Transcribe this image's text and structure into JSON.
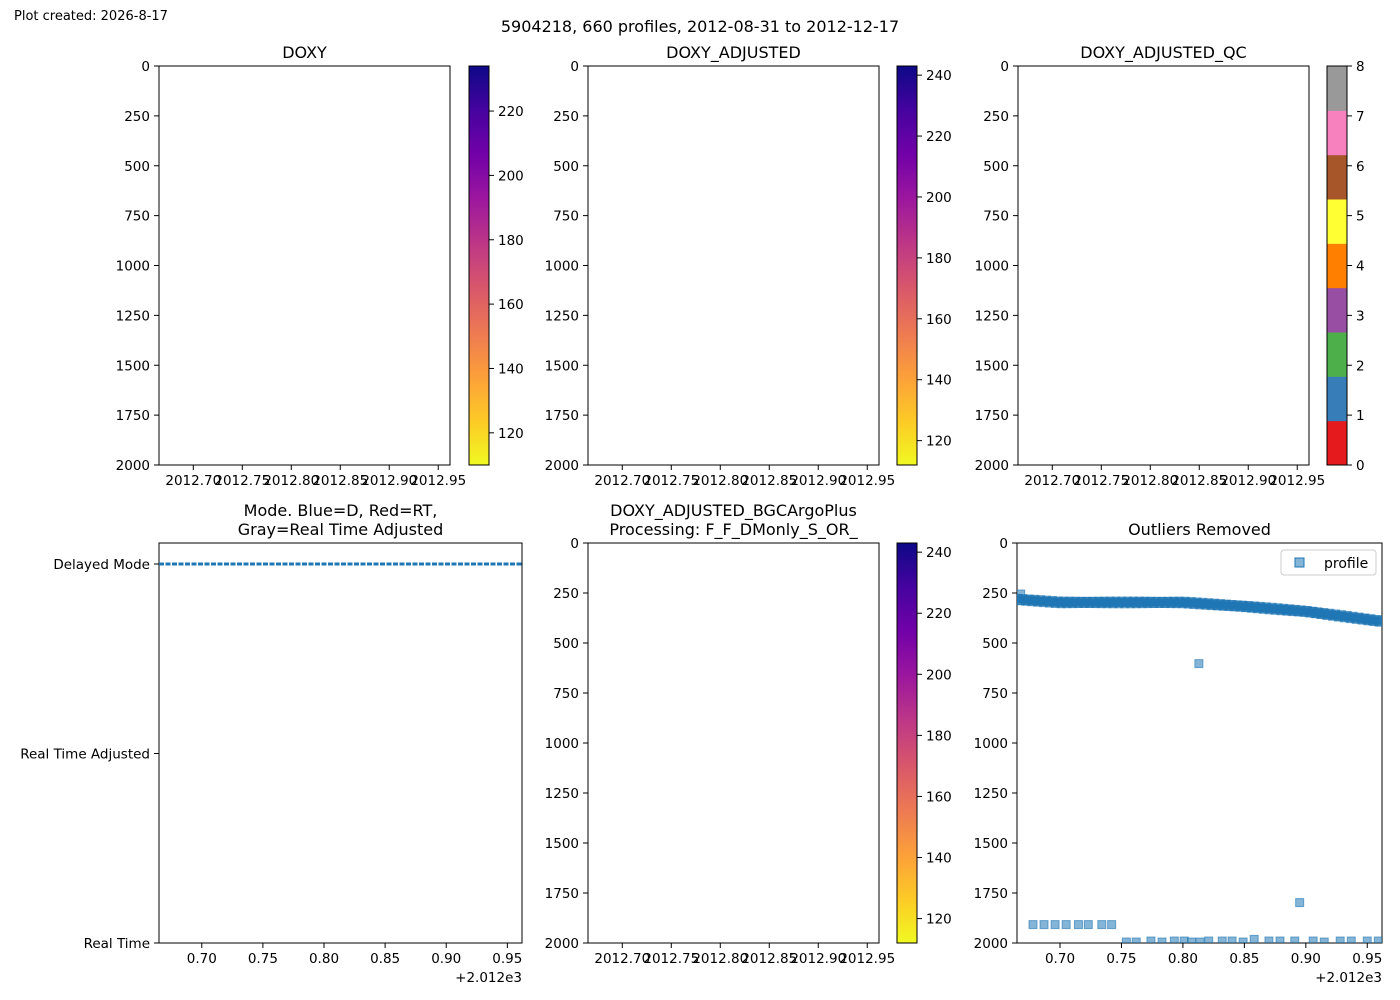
{
  "created_label": "Plot created: 2026-8-17",
  "suptitle": "5904218, 660 profiles, 2012-08-31 to 2012-12-17",
  "chart_data": [
    {
      "id": "doxy",
      "type": "heatmap",
      "title": "DOXY",
      "xlim": [
        2012.665,
        2012.962
      ],
      "ylim": [
        2000,
        0
      ],
      "x_ticks": [
        2012.7,
        2012.75,
        2012.8,
        2012.85,
        2012.9,
        2012.95
      ],
      "x_tick_labels": [
        "2012.70",
        "2012.75",
        "2012.80",
        "2012.85",
        "2012.90",
        "2012.95"
      ],
      "y_ticks": [
        0,
        250,
        500,
        750,
        1000,
        1250,
        1500,
        1750,
        2000
      ],
      "colorbar": {
        "cmap": "plasma_r",
        "range": [
          110,
          234
        ],
        "ticks": [
          120,
          140,
          160,
          180,
          200,
          220
        ]
      },
      "values": []
    },
    {
      "id": "doxy_adjusted",
      "type": "heatmap",
      "title": "DOXY_ADJUSTED",
      "xlim": [
        2012.665,
        2012.962
      ],
      "ylim": [
        2000,
        0
      ],
      "x_ticks": [
        2012.7,
        2012.75,
        2012.8,
        2012.85,
        2012.9,
        2012.95
      ],
      "x_tick_labels": [
        "2012.70",
        "2012.75",
        "2012.80",
        "2012.85",
        "2012.90",
        "2012.95"
      ],
      "y_ticks": [
        0,
        250,
        500,
        750,
        1000,
        1250,
        1500,
        1750,
        2000
      ],
      "colorbar": {
        "cmap": "plasma_r",
        "range": [
          112,
          243
        ],
        "ticks": [
          120,
          140,
          160,
          180,
          200,
          220,
          240
        ]
      },
      "values": []
    },
    {
      "id": "doxy_adjusted_qc",
      "type": "heatmap",
      "title": "DOXY_ADJUSTED_QC",
      "xlim": [
        2012.665,
        2012.962
      ],
      "ylim": [
        2000,
        0
      ],
      "x_ticks": [
        2012.7,
        2012.75,
        2012.8,
        2012.85,
        2012.9,
        2012.95
      ],
      "x_tick_labels": [
        "2012.70",
        "2012.75",
        "2012.80",
        "2012.85",
        "2012.90",
        "2012.95"
      ],
      "y_ticks": [
        0,
        250,
        500,
        750,
        1000,
        1250,
        1500,
        1750,
        2000
      ],
      "colorbar": {
        "cmap": "Set1",
        "range": [
          0,
          8
        ],
        "ticks": [
          0,
          1,
          2,
          3,
          4,
          5,
          6,
          7,
          8
        ],
        "colors": [
          "#e41a1c",
          "#377eb8",
          "#4daf4a",
          "#984ea3",
          "#ff7f00",
          "#ffff33",
          "#a65628",
          "#f781bf",
          "#999999"
        ]
      },
      "values": []
    },
    {
      "id": "mode",
      "type": "scatter",
      "title": "Mode. Blue=D, Red=RT,\nGray=Real Time Adjusted",
      "xlim": [
        2012.665,
        2012.962
      ],
      "x_ticks": [
        2012.7,
        2012.75,
        2012.8,
        2012.85,
        2012.9,
        2012.95
      ],
      "x_tick_labels": [
        "0.70",
        "0.75",
        "0.80",
        "0.85",
        "0.90",
        "0.95"
      ],
      "x_offset_label": "+2.012e3",
      "y_categories": [
        "Delayed Mode",
        "Real Time Adjusted",
        "Real Time"
      ],
      "series": [
        {
          "mode": "Delayed Mode",
          "color": "#1f77b4",
          "x_range": [
            2012.665,
            2012.962
          ],
          "n": 660
        }
      ]
    },
    {
      "id": "doxy_bgc",
      "type": "heatmap",
      "title": "DOXY_ADJUSTED_BGCArgoPlus\nProcessing: F_F_DMonly_S_OR_",
      "xlim": [
        2012.665,
        2012.962
      ],
      "ylim": [
        2000,
        0
      ],
      "x_ticks": [
        2012.7,
        2012.75,
        2012.8,
        2012.85,
        2012.9,
        2012.95
      ],
      "x_tick_labels": [
        "2012.70",
        "2012.75",
        "2012.80",
        "2012.85",
        "2012.90",
        "2012.95"
      ],
      "y_ticks": [
        0,
        250,
        500,
        750,
        1000,
        1250,
        1500,
        1750,
        2000
      ],
      "colorbar": {
        "cmap": "plasma_r",
        "range": [
          112,
          243
        ],
        "ticks": [
          120,
          140,
          160,
          180,
          200,
          220,
          240
        ]
      },
      "values": []
    },
    {
      "id": "outliers",
      "type": "scatter",
      "title": "Outliers Removed",
      "xlim": [
        2012.665,
        2012.962
      ],
      "ylim": [
        2000,
        0
      ],
      "x_ticks": [
        2012.7,
        2012.75,
        2012.8,
        2012.85,
        2012.9,
        2012.95
      ],
      "x_tick_labels": [
        "0.70",
        "0.75",
        "0.80",
        "0.85",
        "0.90",
        "0.95"
      ],
      "x_offset_label": "+2.012e3",
      "y_ticks": [
        0,
        250,
        500,
        750,
        1000,
        1250,
        1500,
        1750,
        2000
      ],
      "legend": {
        "label": "profile",
        "position": "upper right"
      },
      "marker_color": "#1f77b4",
      "band": [
        [
          2012.665,
          275
        ],
        [
          2012.7,
          290
        ],
        [
          2012.75,
          290
        ],
        [
          2012.8,
          290
        ],
        [
          2012.85,
          310
        ],
        [
          2012.9,
          335
        ],
        [
          2012.962,
          385
        ]
      ],
      "points": [
        [
          2012.668,
          255
        ],
        [
          2012.813,
          603
        ],
        [
          2012.895,
          1798
        ],
        [
          2012.678,
          1908
        ],
        [
          2012.687,
          1908
        ],
        [
          2012.696,
          1908
        ],
        [
          2012.705,
          1908
        ],
        [
          2012.715,
          1908
        ],
        [
          2012.723,
          1908
        ],
        [
          2012.734,
          1908
        ],
        [
          2012.742,
          1908
        ],
        [
          2012.754,
          1995
        ],
        [
          2012.762,
          1995
        ],
        [
          2012.774,
          1990
        ],
        [
          2012.783,
          1995
        ],
        [
          2012.793,
          1990
        ],
        [
          2012.801,
          1990
        ],
        [
          2012.807,
          1995
        ],
        [
          2012.814,
          1995
        ],
        [
          2012.821,
          1990
        ],
        [
          2012.832,
          1990
        ],
        [
          2012.84,
          1990
        ],
        [
          2012.849,
          1995
        ],
        [
          2012.858,
          1982
        ],
        [
          2012.87,
          1990
        ],
        [
          2012.879,
          1990
        ],
        [
          2012.891,
          1990
        ],
        [
          2012.906,
          1990
        ],
        [
          2012.915,
          1995
        ],
        [
          2012.928,
          1990
        ],
        [
          2012.937,
          1990
        ],
        [
          2012.95,
          1990
        ],
        [
          2012.959,
          1990
        ]
      ]
    }
  ]
}
